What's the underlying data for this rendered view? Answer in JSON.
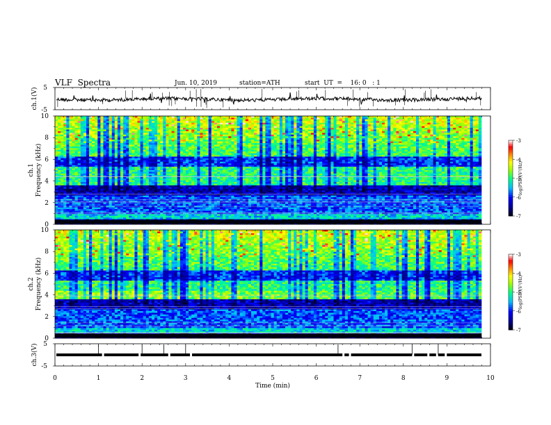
{
  "header": {
    "title": "VLF  Spectra",
    "date": "Jun. 10, 2019",
    "station": "station=ATH",
    "start": "start  UT  =    16: 0   : 1"
  },
  "chart_data": [
    {
      "type": "line",
      "panel": "ch1-waveform",
      "ylabel": "ch.1(V)",
      "ylim": [
        -5,
        5
      ],
      "yticks": [
        "5",
        "-5"
      ],
      "x_range_min": [
        0,
        9.8
      ],
      "series": [
        {
          "values_note_free": true
        }
      ],
      "color": "#000000"
    },
    {
      "type": "heatmap",
      "panel": "ch1-spectrogram",
      "ylabel": "ch.1\nFrequency (kHz)",
      "ylim": [
        0,
        10
      ],
      "yticks": [
        "10",
        "8",
        "6",
        "4",
        "2",
        "0"
      ],
      "x_range_min": [
        0,
        9.8
      ],
      "colorbar": {
        "label": "log(PSD)(V²/Hz)",
        "range": [
          -7,
          -3
        ],
        "ticks": [
          "-3",
          "-4",
          "-5",
          "-6",
          "-7"
        ]
      }
    },
    {
      "type": "heatmap",
      "panel": "ch2-spectrogram",
      "ylabel": "ch.2\nFrequency (kHz)",
      "ylim": [
        0,
        10
      ],
      "yticks": [
        "10",
        "8",
        "6",
        "4",
        "2",
        "0"
      ],
      "x_range_min": [
        0,
        9.8
      ],
      "colorbar": {
        "label": "log(PSD)(V²/Hz)",
        "range": [
          -7,
          -3
        ],
        "ticks": [
          "-3",
          "-4",
          "-5",
          "-6",
          "-7"
        ]
      }
    },
    {
      "type": "line",
      "panel": "ch3-waveform",
      "ylabel": "ch.3(V)",
      "ylim": [
        -5,
        5
      ],
      "yticks": [
        "5",
        "-5"
      ],
      "x_range_min": [
        0,
        9.8
      ],
      "color": "#000000"
    }
  ],
  "xaxis": {
    "label": "Time  (min)",
    "ticks": [
      "0",
      "1",
      "2",
      "3",
      "4",
      "5",
      "6",
      "7",
      "8",
      "9",
      "10"
    ],
    "range": [
      0,
      10
    ]
  },
  "labels": {
    "ch1_v": "ch.1(V)",
    "ch1_freq": "ch.1",
    "freq": "Frequency  (kHz)",
    "ch2_freq": "ch.2",
    "ch3_v": "ch.3(V)",
    "cbar": "log(PSD)(V²/Hz)"
  },
  "colors": {
    "scale": [
      "#000000",
      "#00008b",
      "#0000ff",
      "#00bfff",
      "#00ff80",
      "#ffff00",
      "#ff8000",
      "#ff0000",
      "#ffffff"
    ]
  }
}
